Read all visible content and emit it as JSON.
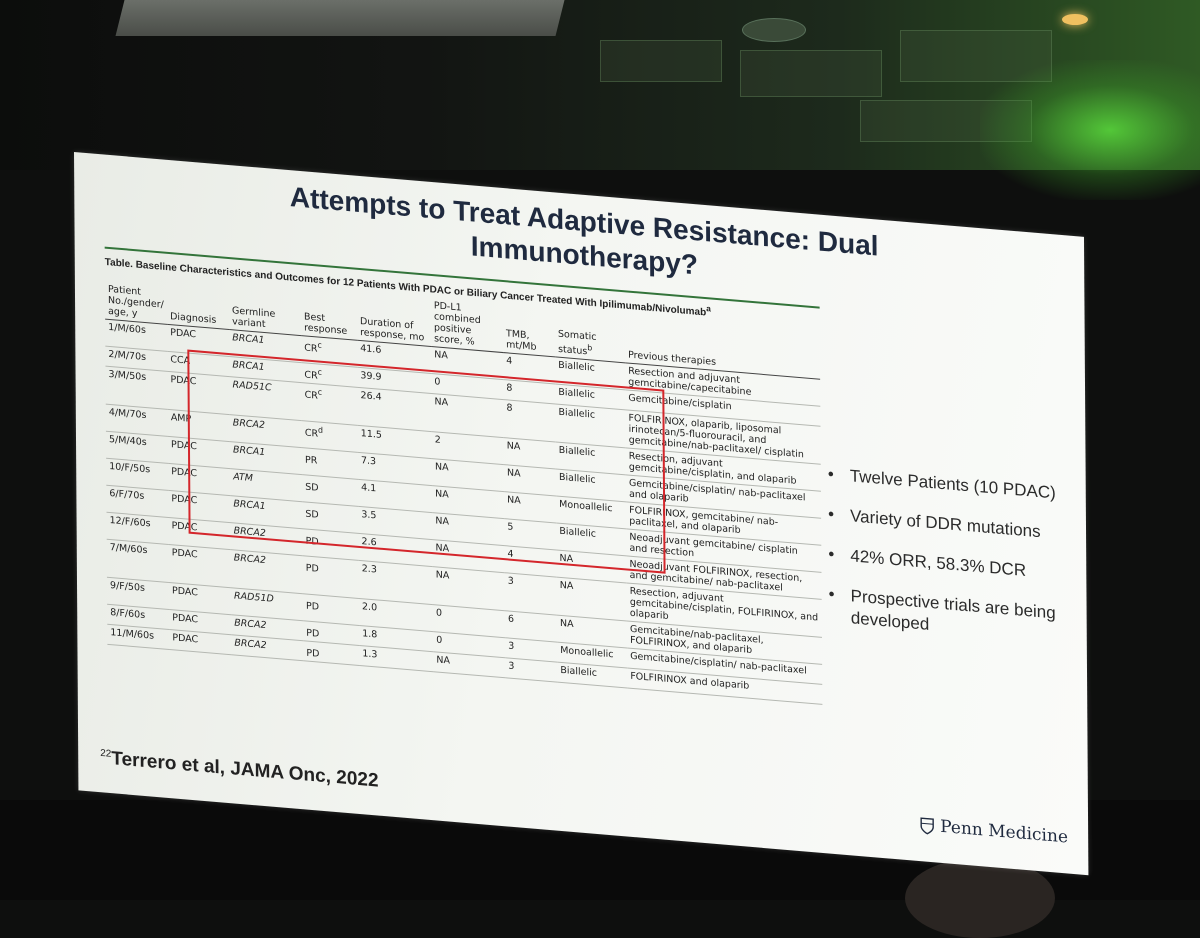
{
  "slide": {
    "title": "Attempts to Treat Adaptive Resistance: Dual Immunotherapy?",
    "table_caption": "Table. Baseline Characteristics and Outcomes for 12 Patients With PDAC or Biliary Cancer Treated With Ipilimumab/Nivolumab",
    "table_caption_sup": "a",
    "table": {
      "headers": [
        "Patient No./gender/ age, y",
        "Diagnosis",
        "Germline variant",
        "Best response",
        "Duration of response, mo",
        "PD-L1 combined positive score, %",
        "TMB, mt/Mb",
        "Somatic status",
        "Previous therapies"
      ],
      "somatic_sup": "b",
      "rows": [
        [
          "1/M/60s",
          "PDAC",
          "BRCA1",
          "CR",
          "41.6",
          "NA",
          "4",
          "Biallelic",
          "Resection and adjuvant gemcitabine/capecitabine",
          "c"
        ],
        [
          "2/M/70s",
          "CCA",
          "BRCA1",
          "CR",
          "39.9",
          "0",
          "8",
          "Biallelic",
          "Gemcitabine/cisplatin",
          "c"
        ],
        [
          "3/M/50s",
          "PDAC",
          "RAD51C",
          "CR",
          "26.4",
          "NA",
          "8",
          "Biallelic",
          "FOLFIRINOX, olaparib, liposomal irinotecan/5-fluorouracil, and gemcitabine/nab-paclitaxel/ cisplatin",
          "c"
        ],
        [
          "4/M/70s",
          "AMP",
          "BRCA2",
          "CR",
          "11.5",
          "2",
          "NA",
          "Biallelic",
          "Resection, adjuvant gemcitabine/cisplatin, and olaparib",
          "d"
        ],
        [
          "5/M/40s",
          "PDAC",
          "BRCA1",
          "PR",
          "7.3",
          "NA",
          "NA",
          "Biallelic",
          "Gemcitabine/cisplatin/ nab-paclitaxel and olaparib",
          ""
        ],
        [
          "10/F/50s",
          "PDAC",
          "ATM",
          "SD",
          "4.1",
          "NA",
          "NA",
          "Monoallelic",
          "FOLFIRINOX, gemcitabine/ nab-paclitaxel, and olaparib",
          ""
        ],
        [
          "6/F/70s",
          "PDAC",
          "BRCA1",
          "SD",
          "3.5",
          "NA",
          "5",
          "Biallelic",
          "Neoadjuvant gemcitabine/ cisplatin and resection",
          ""
        ],
        [
          "12/F/60s",
          "PDAC",
          "BRCA2",
          "PD",
          "2.6",
          "NA",
          "4",
          "NA",
          "Neoadjuvant FOLFIRINOX, resection, and gemcitabine/ nab-paclitaxel",
          ""
        ],
        [
          "7/M/60s",
          "PDAC",
          "BRCA2",
          "PD",
          "2.3",
          "NA",
          "3",
          "NA",
          "Resection, adjuvant gemcitabine/cisplatin, FOLFIRINOX, and olaparib",
          ""
        ],
        [
          "9/F/50s",
          "PDAC",
          "RAD51D",
          "PD",
          "2.0",
          "0",
          "6",
          "NA",
          "Gemcitabine/nab-paclitaxel, FOLFIRINOX, and olaparib",
          ""
        ],
        [
          "8/F/60s",
          "PDAC",
          "BRCA2",
          "PD",
          "1.8",
          "0",
          "3",
          "Monoallelic",
          "Gemcitabine/cisplatin/ nab-paclitaxel",
          ""
        ],
        [
          "11/M/60s",
          "PDAC",
          "BRCA2",
          "PD",
          "1.3",
          "NA",
          "3",
          "Biallelic",
          "FOLFIRINOX and olaparib",
          ""
        ]
      ]
    },
    "bullets": [
      "Twelve Patients (10 PDAC)",
      "Variety of DDR mutations",
      "42% ORR, 58.3% DCR",
      "Prospective trials are being developed"
    ],
    "bullet_glyph": "•",
    "citation_num": "22",
    "citation": "Terrero et al, JAMA Onc, 2022",
    "logo_text": "Penn Medicine"
  },
  "colors": {
    "title": "#1f2a3f",
    "highlight_box": "#d4262b",
    "rule": "#33743a"
  }
}
